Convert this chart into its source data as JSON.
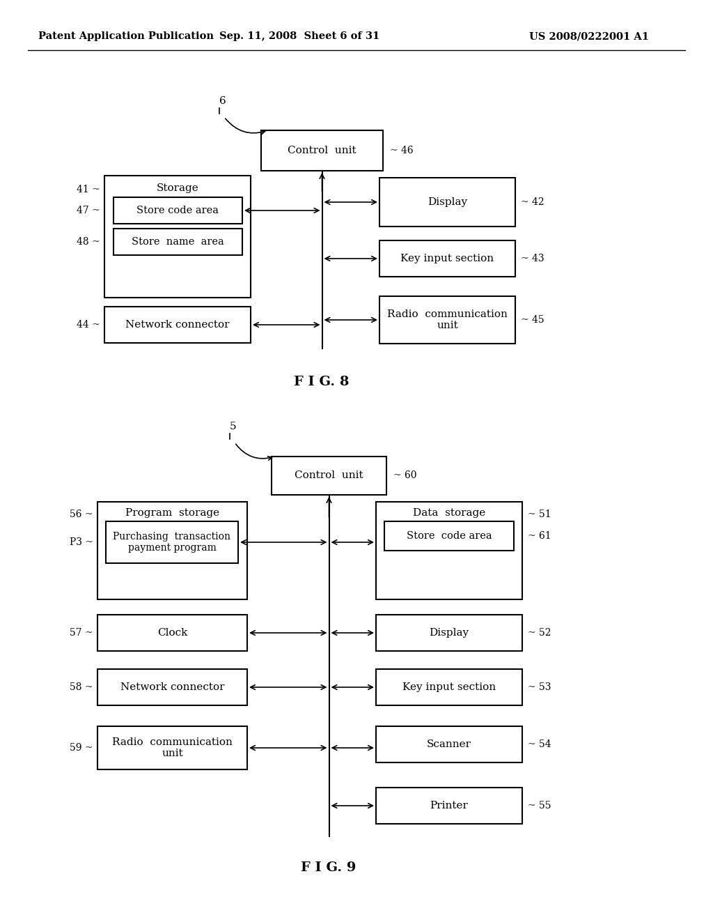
{
  "header_left": "Patent Application Publication",
  "header_mid": "Sep. 11, 2008  Sheet 6 of 31",
  "header_right": "US 2008/0222001 A1",
  "bg_color": "#ffffff"
}
